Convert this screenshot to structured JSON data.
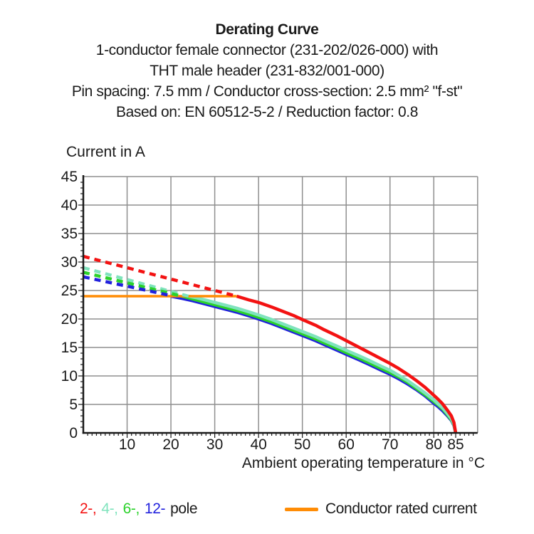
{
  "header": {
    "title": "Derating Curve",
    "subtitle_lines": [
      "1-conductor female connector (231-202/026-000) with",
      "THT male header (231-832/001-000)",
      "Pin spacing: 7.5 mm / Conductor cross-section: 2.5 mm² \"f-st\"",
      "Based on: EN 60512-5-2 / Reduction factor: 0.8"
    ]
  },
  "chart_data": {
    "type": "line",
    "title": "Derating Curve",
    "ylabel": "Current in A",
    "xlabel": "Ambient operating temperature in °C",
    "xlim": [
      0,
      90
    ],
    "ylim": [
      0,
      45
    ],
    "x_tick_values": [
      10,
      20,
      30,
      40,
      50,
      60,
      70,
      80,
      85
    ],
    "x_tick_labels": [
      "10",
      "20",
      "30",
      "40",
      "50",
      "60",
      "70",
      "80",
      "85"
    ],
    "y_tick_values": [
      0,
      5,
      10,
      15,
      20,
      25,
      30,
      35,
      40,
      45
    ],
    "y_tick_labels": [
      "0",
      "5",
      "10",
      "15",
      "20",
      "25",
      "30",
      "35",
      "40",
      "45"
    ],
    "x_grid_step": 10,
    "y_grid_step": 5,
    "minor_tick_step": 1,
    "grid": true,
    "colors": {
      "pole2": "#f31212",
      "pole4": "#7fe3bd",
      "pole6": "#2bd22b",
      "pole12": "#2121dd",
      "rated": "#ff8c05",
      "grid": "#8f8f8f",
      "axis": "#1a1a1a"
    },
    "series": [
      {
        "name": "12-pole",
        "color": "#2121dd",
        "style": "solid",
        "points": [
          [
            20,
            24
          ],
          [
            22,
            23.7
          ],
          [
            25,
            23.2
          ],
          [
            28,
            22.6
          ],
          [
            30,
            22.2
          ],
          [
            33,
            21.6
          ],
          [
            35,
            21.2
          ],
          [
            38,
            20.5
          ],
          [
            40,
            20.0
          ],
          [
            43,
            19.2
          ],
          [
            45,
            18.6
          ],
          [
            48,
            17.7
          ],
          [
            50,
            17.1
          ],
          [
            53,
            16.2
          ],
          [
            55,
            15.5
          ],
          [
            58,
            14.5
          ],
          [
            60,
            13.8
          ],
          [
            63,
            12.8
          ],
          [
            65,
            12.1
          ],
          [
            68,
            11.0
          ],
          [
            70,
            10.3
          ],
          [
            72,
            9.5
          ],
          [
            74,
            8.6
          ],
          [
            76,
            7.6
          ],
          [
            78,
            6.5
          ],
          [
            80,
            5.2
          ],
          [
            81,
            4.6
          ],
          [
            82,
            3.9
          ],
          [
            83,
            3.1
          ],
          [
            84,
            2.2
          ],
          [
            84.6,
            1.3
          ],
          [
            85,
            0
          ]
        ]
      },
      {
        "name": "6-pole",
        "color": "#2bd22b",
        "style": "solid",
        "points": [
          [
            22.5,
            24
          ],
          [
            25,
            23.5
          ],
          [
            28,
            22.9
          ],
          [
            30,
            22.5
          ],
          [
            33,
            21.9
          ],
          [
            35,
            21.5
          ],
          [
            38,
            20.8
          ],
          [
            40,
            20.3
          ],
          [
            43,
            19.5
          ],
          [
            45,
            18.9
          ],
          [
            48,
            18.0
          ],
          [
            50,
            17.4
          ],
          [
            53,
            16.5
          ],
          [
            55,
            15.8
          ],
          [
            58,
            14.8
          ],
          [
            60,
            14.1
          ],
          [
            63,
            13.1
          ],
          [
            65,
            12.4
          ],
          [
            68,
            11.3
          ],
          [
            70,
            10.6
          ],
          [
            72,
            9.8
          ],
          [
            74,
            8.9
          ],
          [
            76,
            7.8
          ],
          [
            78,
            6.7
          ],
          [
            80,
            5.5
          ],
          [
            81,
            4.9
          ],
          [
            82,
            4.2
          ],
          [
            83,
            3.3
          ],
          [
            84,
            2.3
          ],
          [
            84.6,
            1.4
          ],
          [
            85,
            0
          ]
        ]
      },
      {
        "name": "4-pole",
        "color": "#7fe3bd",
        "style": "solid",
        "points": [
          [
            24,
            24
          ],
          [
            26,
            23.7
          ],
          [
            28,
            23.3
          ],
          [
            30,
            22.9
          ],
          [
            33,
            22.3
          ],
          [
            35,
            21.9
          ],
          [
            38,
            21.2
          ],
          [
            40,
            20.7
          ],
          [
            43,
            19.9
          ],
          [
            45,
            19.3
          ],
          [
            48,
            18.4
          ],
          [
            50,
            17.8
          ],
          [
            53,
            16.9
          ],
          [
            55,
            16.2
          ],
          [
            58,
            15.2
          ],
          [
            60,
            14.5
          ],
          [
            63,
            13.5
          ],
          [
            65,
            12.8
          ],
          [
            68,
            11.7
          ],
          [
            70,
            11.0
          ],
          [
            72,
            10.1
          ],
          [
            74,
            9.2
          ],
          [
            76,
            8.1
          ],
          [
            78,
            7.0
          ],
          [
            80,
            5.8
          ],
          [
            81,
            5.1
          ],
          [
            82,
            4.4
          ],
          [
            83,
            3.5
          ],
          [
            84,
            2.5
          ],
          [
            84.6,
            1.5
          ],
          [
            85,
            0
          ]
        ]
      },
      {
        "name": "2-pole",
        "color": "#f31212",
        "style": "solid",
        "points": [
          [
            35,
            24
          ],
          [
            38,
            23.3
          ],
          [
            40,
            22.9
          ],
          [
            43,
            22.1
          ],
          [
            45,
            21.5
          ],
          [
            48,
            20.6
          ],
          [
            50,
            19.9
          ],
          [
            53,
            18.9
          ],
          [
            55,
            18.1
          ],
          [
            58,
            17.0
          ],
          [
            60,
            16.2
          ],
          [
            63,
            15.0
          ],
          [
            65,
            14.2
          ],
          [
            68,
            13.0
          ],
          [
            70,
            12.2
          ],
          [
            72,
            11.3
          ],
          [
            74,
            10.3
          ],
          [
            76,
            9.2
          ],
          [
            78,
            8.0
          ],
          [
            80,
            6.6
          ],
          [
            81,
            5.9
          ],
          [
            82,
            5.1
          ],
          [
            83,
            4.1
          ],
          [
            84,
            3.0
          ],
          [
            84.6,
            1.8
          ],
          [
            85,
            0
          ]
        ]
      },
      {
        "name": "Conductor rated current",
        "color": "#ff8c05",
        "style": "solid",
        "width": 3.5,
        "points": [
          [
            0,
            24
          ],
          [
            35,
            24
          ]
        ]
      },
      {
        "name": "2-pole derated",
        "color": "#f31212",
        "style": "dashed",
        "points": [
          [
            0,
            31
          ],
          [
            35,
            24
          ]
        ]
      },
      {
        "name": "4-pole derated",
        "color": "#7fe3bd",
        "style": "dashed",
        "points": [
          [
            0,
            29
          ],
          [
            24,
            24
          ]
        ]
      },
      {
        "name": "6-pole derated",
        "color": "#2bd22b",
        "style": "dashed",
        "points": [
          [
            0,
            28.2
          ],
          [
            22.5,
            24
          ]
        ]
      },
      {
        "name": "12-pole derated",
        "color": "#2121dd",
        "style": "dashed",
        "points": [
          [
            0,
            27.4
          ],
          [
            20,
            24.1
          ]
        ]
      }
    ]
  },
  "legend": {
    "pole_segments": [
      {
        "text": "2-,",
        "color": "#f31212"
      },
      {
        "text": "4-,",
        "color": "#7fe3bd"
      },
      {
        "text": "6-,",
        "color": "#2bd22b"
      },
      {
        "text": "12-",
        "color": "#2121dd"
      },
      {
        "text": "pole",
        "color": "#1a1a1a"
      }
    ],
    "rated_label": "Conductor rated current",
    "rated_color": "#ff8c05"
  }
}
